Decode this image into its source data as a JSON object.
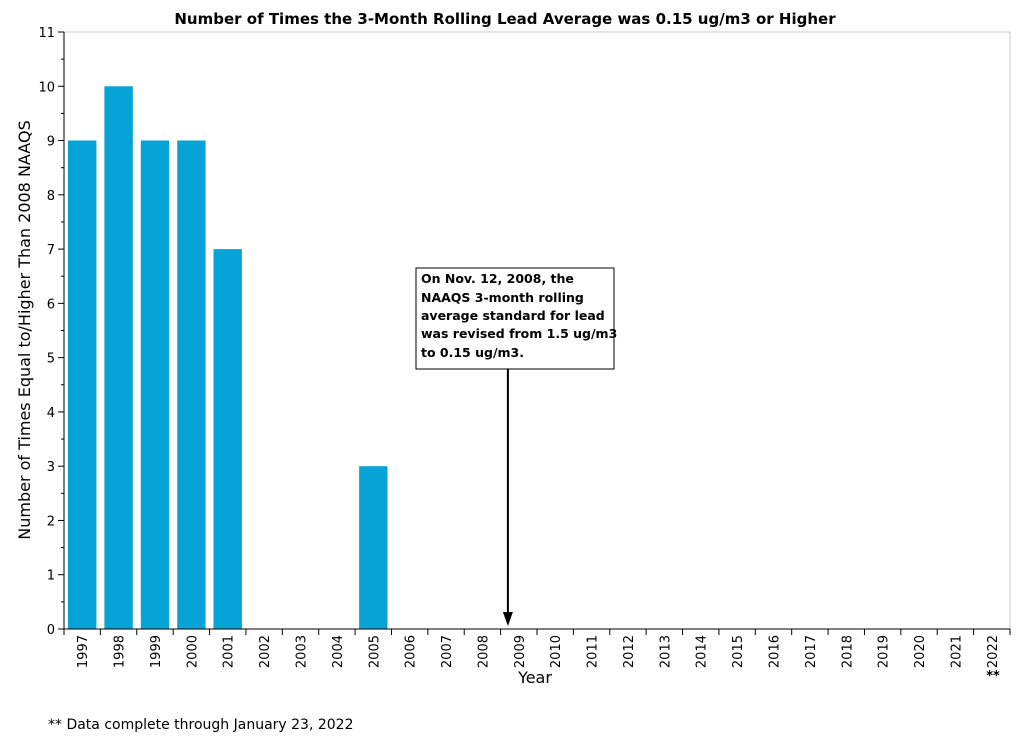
{
  "chart_data": {
    "type": "bar",
    "title": "Number of Times the 3-Month Rolling Lead Average was 0.15 ug/m3 or Higher",
    "xlabel": "Year",
    "ylabel": "Number of Times Equal to/Higher Than 2008 NAAQS",
    "categories": [
      "1997",
      "1998",
      "1999",
      "2000",
      "2001",
      "2002",
      "2003",
      "2004",
      "2005",
      "2006",
      "2007",
      "2008",
      "2009",
      "2010",
      "2011",
      "2012",
      "2013",
      "2014",
      "2015",
      "2016",
      "2017",
      "2018",
      "2019",
      "2020",
      "2021",
      "2022"
    ],
    "values": [
      9,
      10,
      9,
      9,
      7,
      0,
      0,
      0,
      3,
      0,
      0,
      0,
      0,
      0,
      0,
      0,
      0,
      0,
      0,
      0,
      0,
      0,
      0,
      0,
      0,
      0
    ],
    "ylim": [
      0,
      11
    ],
    "yticks": [
      0,
      1,
      2,
      3,
      4,
      5,
      6,
      7,
      8,
      9,
      10,
      11
    ],
    "bar_color": "#06A3D6",
    "grid": false,
    "annotation": {
      "lines": [
        "On Nov. 12, 2008, the",
        "NAAQS 3-month rolling",
        "average standard for lead",
        "was revised from 1.5 ug/m3",
        "to 0.15 ug/m3."
      ],
      "arrow_x_year": 2008.7
    },
    "marker_2022": "**"
  },
  "footnote": "** Data complete through January 23, 2022"
}
